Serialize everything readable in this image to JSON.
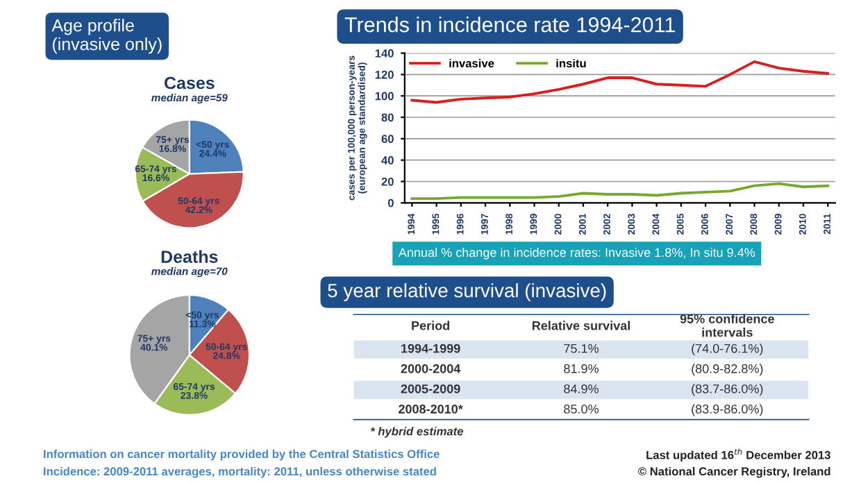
{
  "chart_data": [
    {
      "type": "pie",
      "title": "Cases",
      "subtitle": "median age=59",
      "annotations": [
        "Age profile\n(invasive only)"
      ],
      "categories": [
        "<50 yrs",
        "50-64 yrs",
        "65-74 yrs",
        "75+ yrs"
      ],
      "values": [
        24.4,
        42.2,
        16.6,
        16.8
      ],
      "colors": [
        "#4f81bd",
        "#c0504d",
        "#9bbb59",
        "#a5a5a5"
      ],
      "value_labels": [
        "24.4%",
        "42.2%",
        "16.6%",
        "16.8%"
      ],
      "legend": false
    },
    {
      "type": "pie",
      "title": "Deaths",
      "subtitle": "median age=70",
      "categories": [
        "<50 yrs",
        "50-64 yrs",
        "65-74 yrs",
        "75+ yrs"
      ],
      "values": [
        11.3,
        24.8,
        23.8,
        40.1
      ],
      "colors": [
        "#4f81bd",
        "#c0504d",
        "#9bbb59",
        "#a5a5a5"
      ],
      "value_labels": [
        "11.3%",
        "24.8%",
        "23.8%",
        "40.1%"
      ],
      "legend": false
    },
    {
      "type": "line",
      "title": "Trends in incidence rate 1994-2011",
      "ylabel": "cases per 100,000 person-years\n(european age standardised)",
      "annotations": [
        "Annual % change in incidence rates: Invasive 1.8%, In situ 9.4%"
      ],
      "categories": [
        "1994",
        "1995",
        "1996",
        "1997",
        "1998",
        "1999",
        "2000",
        "2001",
        "2002",
        "2003",
        "2004",
        "2005",
        "2006",
        "2007",
        "2008",
        "2009",
        "2010",
        "2011"
      ],
      "series": [
        {
          "name": "invasive",
          "color": "#d62020",
          "values": [
            96,
            94,
            97,
            98,
            99,
            102,
            106,
            111,
            117,
            117,
            111,
            110,
            109,
            120,
            132,
            126,
            123,
            121
          ]
        },
        {
          "name": "insitu",
          "color": "#77a832",
          "values": [
            4,
            4,
            5,
            5,
            5,
            5,
            6,
            9,
            8,
            8,
            7,
            9,
            10,
            11,
            16,
            18,
            15,
            16
          ]
        }
      ],
      "ylim": [
        0,
        140
      ],
      "yticks": [
        0,
        20,
        40,
        60,
        80,
        100,
        120,
        140
      ],
      "grid": "y",
      "legend": "top left",
      "marker": "none",
      "line_style": "solid"
    },
    {
      "type": "other",
      "title": "5 year relative survival (invasive)",
      "categories": [
        "Period",
        "Relative survival",
        "95% confidence\nintervals"
      ],
      "y_categories": [
        "1994-1999",
        "2000-2004",
        "2005-2009",
        "2008-2010*"
      ],
      "cell_labels": [
        [
          "75.1%",
          "(74.0-76.1%)"
        ],
        [
          "81.9%",
          "(80.9-82.8%)"
        ],
        [
          "84.9%",
          "(83.7-86.0%)"
        ],
        [
          "85.0%",
          "(83.9-86.0%)"
        ]
      ],
      "annotations": [
        "* hybrid estimate",
        "Information on cancer mortality provided by the Central Statistics Office",
        "Incidence: 2009-2011 averages, mortality: 2011, unless otherwise stated",
        "Last updated 16$^{th}$ December 2013",
        "© National Cancer Registry, Ireland"
      ]
    }
  ]
}
